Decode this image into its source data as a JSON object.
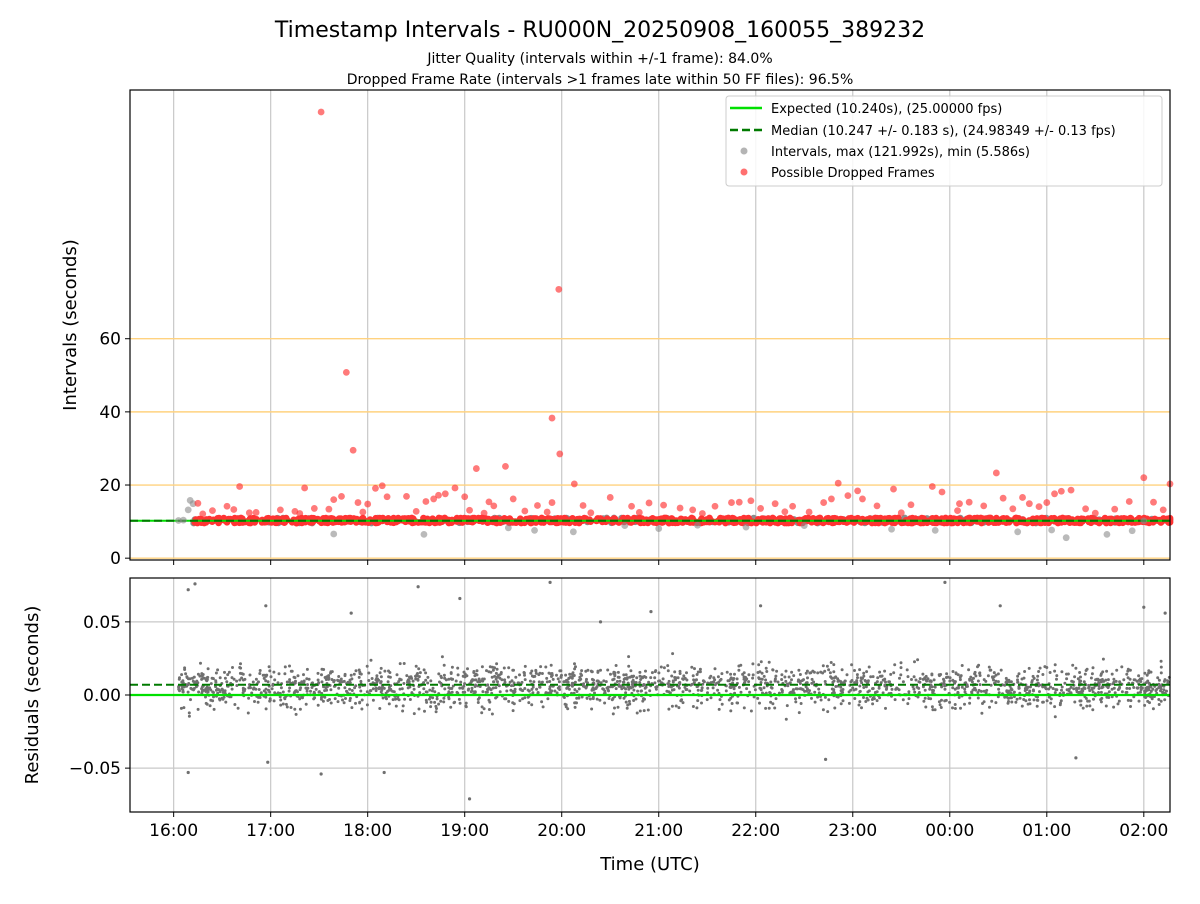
{
  "chart_data": [
    {
      "type": "scatter",
      "panel": "intervals",
      "title": "Timestamp Intervals - RU000N_20250908_160055_389232",
      "subtitle_lines": [
        "Jitter Quality (intervals within +/-1 frame): 84.0%",
        "Dropped Frame Rate (intervals >1 frames late within 50 FF files): 96.5%"
      ],
      "xlabel": "Time (UTC)",
      "ylabel": "Intervals (seconds)",
      "x_ticks": [
        "16:00",
        "17:00",
        "18:00",
        "19:00",
        "20:00",
        "21:00",
        "22:00",
        "23:00",
        "00:00",
        "01:00",
        "02:00"
      ],
      "xlim_hours": [
        15.55,
        26.27
      ],
      "y_ticks": [
        "0",
        "20",
        "40",
        "60"
      ],
      "ylim": [
        -0.5,
        128
      ],
      "horizontal_reference_lines": {
        "values": [
          0,
          20,
          40,
          60
        ],
        "color": "#ffd27f"
      },
      "grid": "vertical",
      "legend": {
        "placement": "top-right",
        "entries": [
          {
            "label": "Expected (10.240s), (25.00000 fps)",
            "kind": "line",
            "color": "#00e000"
          },
          {
            "label": "Median (10.247 +/- 0.183 s), (24.98349 +/- 0.13 fps)",
            "kind": "dashed",
            "color": "#007a00"
          },
          {
            "label": "Intervals, max (121.992s), min (5.586s)",
            "kind": "marker",
            "color": "#8c8c8c"
          },
          {
            "label": "Possible Dropped Frames",
            "kind": "marker",
            "color": "#ff3333"
          }
        ]
      },
      "expected_interval": 10.24,
      "median_interval": 10.247,
      "max_interval": 121.992,
      "min_interval": 5.586,
      "bulk_band": {
        "x_range_hours": [
          16.2,
          26.3
        ],
        "y_range": [
          9.6,
          11.0
        ]
      },
      "series": [
        {
          "name": "Intervals, max (121.992s), min (5.586s)",
          "color": "#8c8c8c",
          "points": [
            [
              16.05,
              10.3
            ],
            [
              16.1,
              10.4
            ],
            [
              16.15,
              13.2
            ],
            [
              16.17,
              15.8
            ],
            [
              16.2,
              14.9
            ],
            [
              17.65,
              6.6
            ],
            [
              18.58,
              6.5
            ],
            [
              19.45,
              8.3
            ],
            [
              19.72,
              7.6
            ],
            [
              20.12,
              7.2
            ],
            [
              20.65,
              8.9
            ],
            [
              21.0,
              8.1
            ],
            [
              21.4,
              9.0
            ],
            [
              21.9,
              8.5
            ],
            [
              22.5,
              8.9
            ],
            [
              23.4,
              7.9
            ],
            [
              23.85,
              7.6
            ],
            [
              24.7,
              7.2
            ],
            [
              25.05,
              7.7
            ],
            [
              25.2,
              5.6
            ],
            [
              25.62,
              6.5
            ],
            [
              25.88,
              7.5
            ],
            [
              26.0,
              10.2
            ]
          ]
        },
        {
          "name": "Possible Dropped Frames",
          "color": "#ff3333",
          "points": [
            [
              17.52,
              121.99
            ],
            [
              19.97,
              73.5
            ],
            [
              17.78,
              50.8
            ],
            [
              19.9,
              38.3
            ],
            [
              19.98,
              28.5
            ],
            [
              17.85,
              29.5
            ],
            [
              19.12,
              24.5
            ],
            [
              19.42,
              25.1
            ],
            [
              20.13,
              20.3
            ],
            [
              26.0,
              22.0
            ],
            [
              26.27,
              20.3
            ],
            [
              24.48,
              23.3
            ],
            [
              22.85,
              20.5
            ],
            [
              17.35,
              19.2
            ],
            [
              16.68,
              19.6
            ],
            [
              18.15,
              19.8
            ],
            [
              18.08,
              19.1
            ],
            [
              18.2,
              16.8
            ],
            [
              18.4,
              16.9
            ],
            [
              18.73,
              17.2
            ],
            [
              18.8,
              17.6
            ],
            [
              18.9,
              19.2
            ],
            [
              19.5,
              16.2
            ],
            [
              19.9,
              15.2
            ],
            [
              17.73,
              16.9
            ],
            [
              17.9,
              15.2
            ],
            [
              18.0,
              14.8
            ],
            [
              18.6,
              15.5
            ],
            [
              18.68,
              16.2
            ],
            [
              17.6,
              13.4
            ],
            [
              17.65,
              16.0
            ],
            [
              16.25,
              15.0
            ],
            [
              16.4,
              13.0
            ],
            [
              16.55,
              14.2
            ],
            [
              16.62,
              13.3
            ],
            [
              16.85,
              12.5
            ],
            [
              17.1,
              13.2
            ],
            [
              17.25,
              12.8
            ],
            [
              17.45,
              13.6
            ],
            [
              19.0,
              16.8
            ],
            [
              19.05,
              13.1
            ],
            [
              19.25,
              15.4
            ],
            [
              19.3,
              14.3
            ],
            [
              19.62,
              12.9
            ],
            [
              19.75,
              14.4
            ],
            [
              20.22,
              14.4
            ],
            [
              20.5,
              16.6
            ],
            [
              20.72,
              14.2
            ],
            [
              20.9,
              15.1
            ],
            [
              21.05,
              14.5
            ],
            [
              21.22,
              13.7
            ],
            [
              21.35,
              13.2
            ],
            [
              21.58,
              14.2
            ],
            [
              21.75,
              15.2
            ],
            [
              21.83,
              15.3
            ],
            [
              21.95,
              15.7
            ],
            [
              22.05,
              13.6
            ],
            [
              22.2,
              14.9
            ],
            [
              22.38,
              14.2
            ],
            [
              22.55,
              12.6
            ],
            [
              22.7,
              15.2
            ],
            [
              22.78,
              16.2
            ],
            [
              22.95,
              17.1
            ],
            [
              23.05,
              18.4
            ],
            [
              23.1,
              16.2
            ],
            [
              23.25,
              14.3
            ],
            [
              23.42,
              18.9
            ],
            [
              23.6,
              14.6
            ],
            [
              23.82,
              19.6
            ],
            [
              23.92,
              18.1
            ],
            [
              24.1,
              14.9
            ],
            [
              24.2,
              15.3
            ],
            [
              24.35,
              14.3
            ],
            [
              24.55,
              16.4
            ],
            [
              24.65,
              13.5
            ],
            [
              24.75,
              16.6
            ],
            [
              24.82,
              14.9
            ],
            [
              24.92,
              14.1
            ],
            [
              25.0,
              15.2
            ],
            [
              25.08,
              17.6
            ],
            [
              25.15,
              18.3
            ],
            [
              25.25,
              18.6
            ],
            [
              25.4,
              13.5
            ],
            [
              25.5,
              12.3
            ],
            [
              25.7,
              13.4
            ],
            [
              25.85,
              15.5
            ],
            [
              26.1,
              15.3
            ],
            [
              26.2,
              13.2
            ],
            [
              24.08,
              13.0
            ],
            [
              23.5,
              12.4
            ],
            [
              22.3,
              12.7
            ],
            [
              21.45,
              12.2
            ],
            [
              20.8,
              12.5
            ],
            [
              20.3,
              12.4
            ],
            [
              19.85,
              12.6
            ],
            [
              19.2,
              12.3
            ],
            [
              18.5,
              12.8
            ],
            [
              17.95,
              12.6
            ],
            [
              17.3,
              12.2
            ],
            [
              16.78,
              12.4
            ],
            [
              16.3,
              12.1
            ]
          ]
        }
      ]
    },
    {
      "type": "scatter",
      "panel": "residuals",
      "xlabel": "Time (UTC)",
      "ylabel": "Residuals (seconds)",
      "x_ticks": [
        "16:00",
        "17:00",
        "18:00",
        "19:00",
        "20:00",
        "21:00",
        "22:00",
        "23:00",
        "00:00",
        "01:00",
        "02:00"
      ],
      "xlim_hours": [
        15.55,
        26.27
      ],
      "y_ticks": [
        "0.05",
        "0.00",
        "−0.05"
      ],
      "y_tick_values": [
        0.05,
        0.0,
        -0.05
      ],
      "ylim": [
        -0.08,
        0.08
      ],
      "grid": "both",
      "expected_line": {
        "value": 0.0,
        "color": "#00e000"
      },
      "median_line": {
        "value": 0.007,
        "color": "#007a00"
      },
      "point_color": "#707070",
      "bulk": {
        "x_range_hours": [
          16.05,
          26.27
        ],
        "center": 0.006,
        "spread": 0.012,
        "approx_count": 2200
      },
      "outliers": [
        [
          16.15,
          0.072
        ],
        [
          16.22,
          0.076
        ],
        [
          16.15,
          -0.053
        ],
        [
          16.95,
          0.061
        ],
        [
          16.97,
          -0.046
        ],
        [
          17.52,
          -0.054
        ],
        [
          17.83,
          0.056
        ],
        [
          18.17,
          -0.053
        ],
        [
          18.52,
          0.074
        ],
        [
          18.95,
          0.066
        ],
        [
          19.05,
          -0.071
        ],
        [
          19.88,
          0.077
        ],
        [
          20.4,
          0.05
        ],
        [
          20.92,
          0.057
        ],
        [
          22.05,
          0.061
        ],
        [
          22.72,
          -0.044
        ],
        [
          23.95,
          0.077
        ],
        [
          24.52,
          0.061
        ],
        [
          25.3,
          -0.043
        ],
        [
          26.0,
          0.06
        ],
        [
          26.22,
          0.056
        ]
      ]
    }
  ]
}
